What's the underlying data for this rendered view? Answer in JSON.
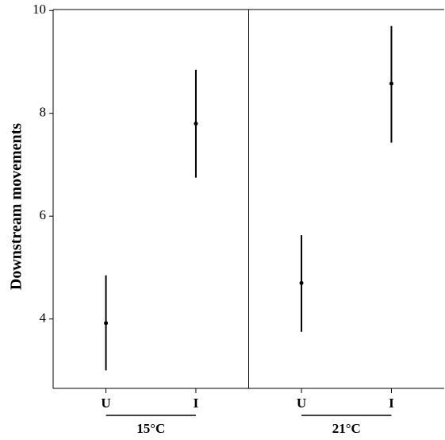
{
  "chart_data": {
    "type": "scatter",
    "ylabel": "Downstream movements",
    "xlabel": "",
    "ylim": [
      2.65,
      10.02
    ],
    "yticks": [
      4,
      6,
      8,
      10
    ],
    "grid": false,
    "legend": "none",
    "point_color": "#000000",
    "groups": [
      {
        "label": "15°C",
        "points": [
          {
            "category": "U",
            "mean": 3.92,
            "lower": 3.0,
            "upper": 4.85
          },
          {
            "category": "I",
            "mean": 7.8,
            "lower": 6.75,
            "upper": 8.85
          }
        ]
      },
      {
        "label": "21°C",
        "points": [
          {
            "category": "U",
            "mean": 4.7,
            "lower": 3.75,
            "upper": 5.63
          },
          {
            "category": "I",
            "mean": 8.58,
            "lower": 7.43,
            "upper": 9.7
          }
        ]
      }
    ]
  }
}
